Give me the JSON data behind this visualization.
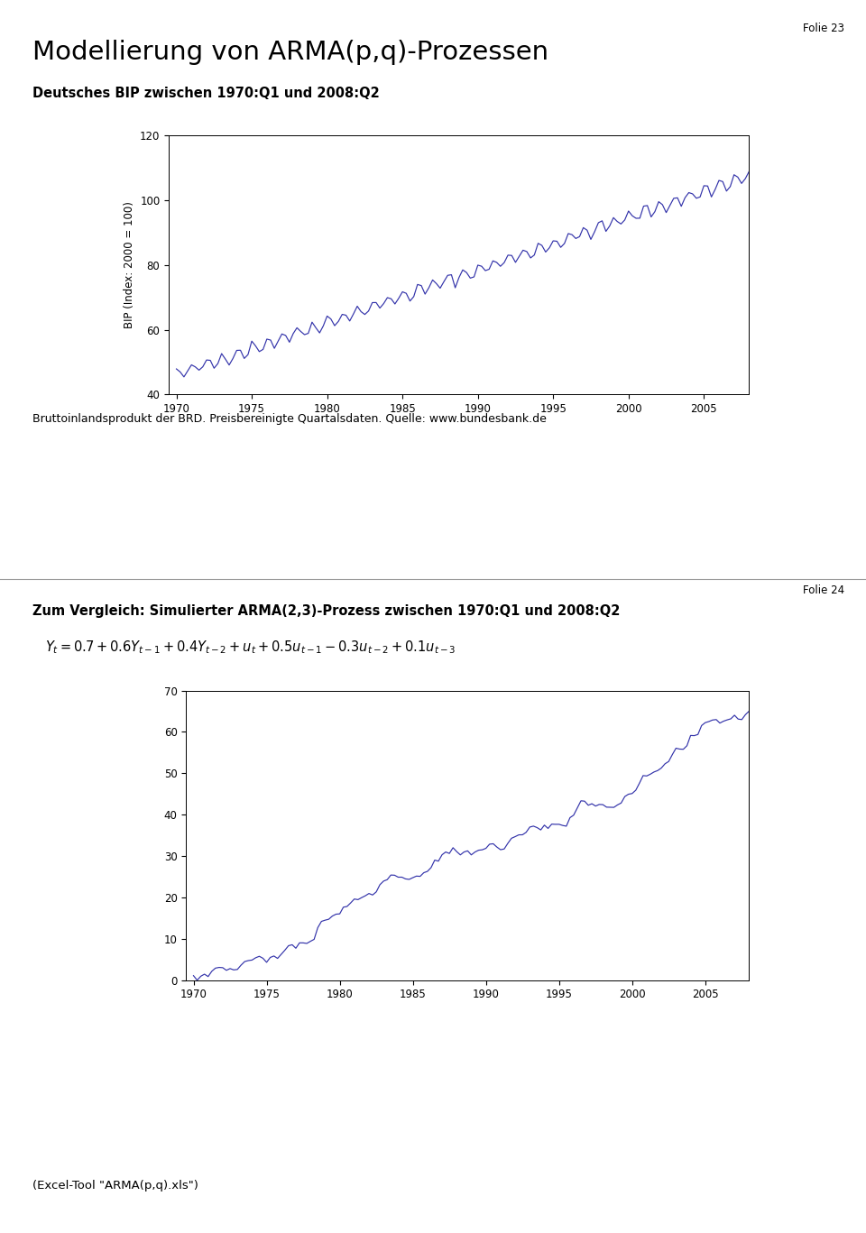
{
  "title": "Modellierung von ARMA(p,q)-Prozessen",
  "folie23": "Folie 23",
  "folie24": "Folie 24",
  "subtitle1": "Deutsches BIP zwischen 1970:Q1 und 2008:Q2",
  "ylabel1": "BIP (Index: 2000 = 100)",
  "ylim1": [
    40,
    120
  ],
  "yticks1": [
    40,
    60,
    80,
    100,
    120
  ],
  "subtitle2": "Zum Vergleich: Simulierter ARMA(2,3)-Prozess zwischen 1970:Q1 und 2008:Q2",
  "ylim2": [
    0,
    70
  ],
  "yticks2": [
    0,
    10,
    20,
    30,
    40,
    50,
    60,
    70
  ],
  "xticks_labels": [
    "1970",
    "1975",
    "1980",
    "1985",
    "1990",
    "1995",
    "2000",
    "2005"
  ],
  "source_text": "Bruttoinlandsprodukt der BRD. Preisbereinigte Quartalsdaten. Quelle: www.bundesbank.de",
  "footer_text": "(Excel-Tool \"ARMA(p,q).xls\")",
  "line_color": "#3333aa",
  "bg_color": "#ffffff",
  "separator_color": "#999999"
}
